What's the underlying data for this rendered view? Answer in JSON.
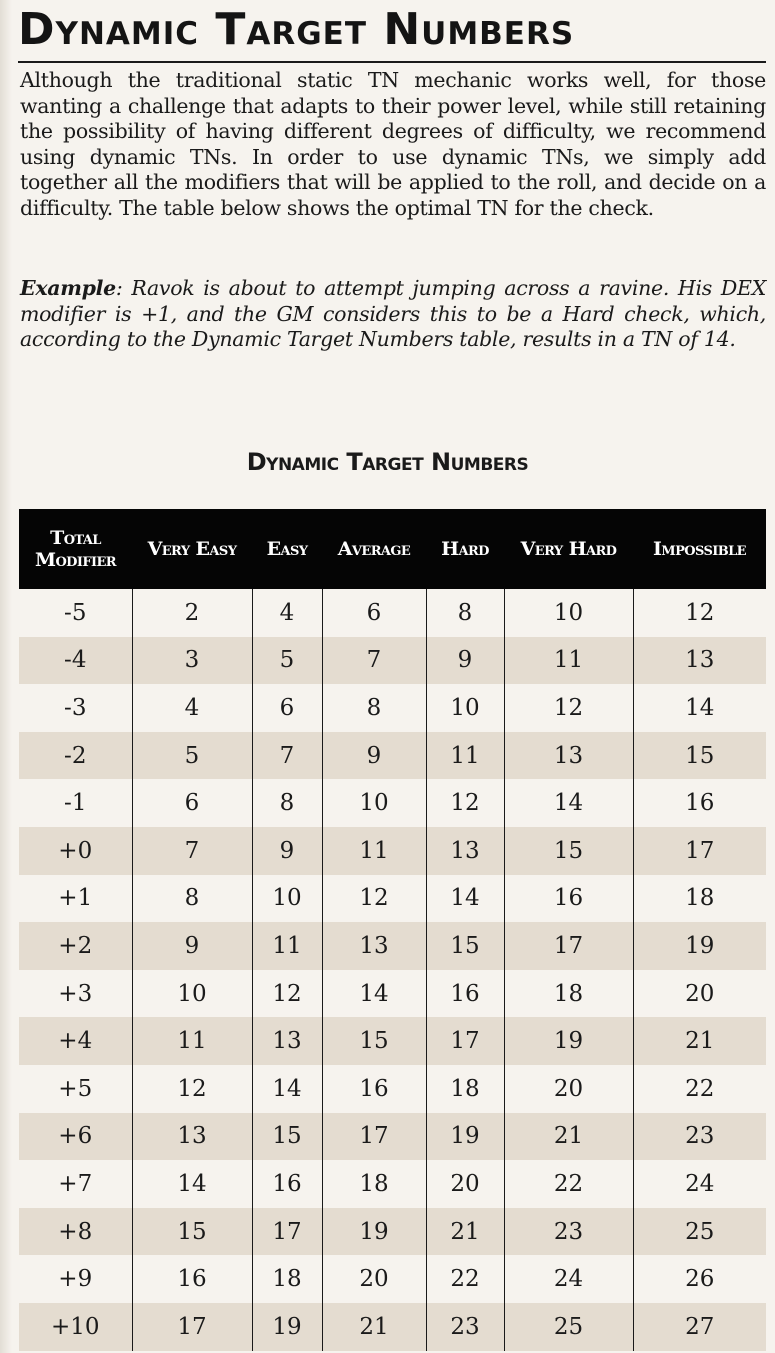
{
  "heading": "Dynamic Target Numbers",
  "intro": "Although the traditional static TN mechanic works well, for those wanting a challenge that adapts to their power level, while still retaining the possibility of having different degrees of difficulty, we recommend using dynamic TNs. In order to use dynamic TNs, we simply add together all the modifiers that will be applied to the roll, and decide on a difficulty. The table below shows the optimal TN for the check.",
  "example": {
    "lead": "Example",
    "sep": ": ",
    "body": "Ravok is about to attempt jumping across a ravine. His DEX modifier is +1, and the GM considers this to be a Hard check, which, according to the Dynamic Target Numbers table, results in a TN of 14."
  },
  "table": {
    "title": "Dynamic Target Numbers",
    "first_header_line1": "Total",
    "first_header_line2": "Modifier",
    "headers": [
      "Very Easy",
      "Easy",
      "Average",
      "Hard",
      "Very Hard",
      "Impossible"
    ],
    "rows": [
      [
        "-5",
        "2",
        "4",
        "6",
        "8",
        "10",
        "12"
      ],
      [
        "-4",
        "3",
        "5",
        "7",
        "9",
        "11",
        "13"
      ],
      [
        "-3",
        "4",
        "6",
        "8",
        "10",
        "12",
        "14"
      ],
      [
        "-2",
        "5",
        "7",
        "9",
        "11",
        "13",
        "15"
      ],
      [
        "-1",
        "6",
        "8",
        "10",
        "12",
        "14",
        "16"
      ],
      [
        "+0",
        "7",
        "9",
        "11",
        "13",
        "15",
        "17"
      ],
      [
        "+1",
        "8",
        "10",
        "12",
        "14",
        "16",
        "18"
      ],
      [
        "+2",
        "9",
        "11",
        "13",
        "15",
        "17",
        "19"
      ],
      [
        "+3",
        "10",
        "12",
        "14",
        "16",
        "18",
        "20"
      ],
      [
        "+4",
        "11",
        "13",
        "15",
        "17",
        "19",
        "21"
      ],
      [
        "+5",
        "12",
        "14",
        "16",
        "18",
        "20",
        "22"
      ],
      [
        "+6",
        "13",
        "15",
        "17",
        "19",
        "21",
        "23"
      ],
      [
        "+7",
        "14",
        "16",
        "18",
        "20",
        "22",
        "24"
      ],
      [
        "+8",
        "15",
        "17",
        "19",
        "21",
        "23",
        "25"
      ],
      [
        "+9",
        "16",
        "18",
        "20",
        "22",
        "24",
        "26"
      ],
      [
        "+10",
        "17",
        "19",
        "21",
        "23",
        "25",
        "27"
      ]
    ]
  }
}
